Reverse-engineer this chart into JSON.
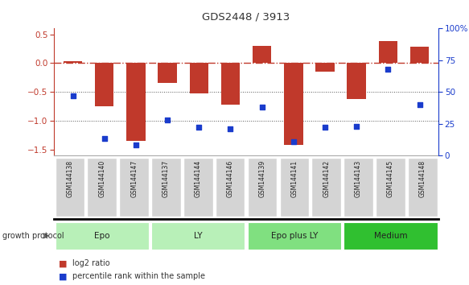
{
  "title": "GDS2448 / 3913",
  "samples": [
    "GSM144138",
    "GSM144140",
    "GSM144147",
    "GSM144137",
    "GSM144144",
    "GSM144146",
    "GSM144139",
    "GSM144141",
    "GSM144142",
    "GSM144143",
    "GSM144145",
    "GSM144148"
  ],
  "log2_ratio": [
    0.03,
    -0.75,
    -1.35,
    -0.35,
    -0.53,
    -0.72,
    0.3,
    -1.42,
    -0.15,
    -0.62,
    0.38,
    0.28
  ],
  "percentile_rank": [
    47,
    13,
    8,
    28,
    22,
    21,
    38,
    11,
    22,
    23,
    68,
    40
  ],
  "bar_color": "#c0392b",
  "dot_color": "#1a3ccc",
  "groups": [
    {
      "label": "Epo",
      "start": 0,
      "end": 3,
      "color": "#b8f0b8"
    },
    {
      "label": "LY",
      "start": 3,
      "end": 6,
      "color": "#b8f0b8"
    },
    {
      "label": "Epo plus LY",
      "start": 6,
      "end": 9,
      "color": "#80e080"
    },
    {
      "label": "Medium",
      "start": 9,
      "end": 12,
      "color": "#30c030"
    }
  ],
  "ylim": [
    -1.6,
    0.6
  ],
  "yticks_left": [
    -1.5,
    -1.0,
    -0.5,
    0.0,
    0.5
  ],
  "yticks_right": [
    0,
    25,
    50,
    75,
    100
  ],
  "hline_zero_color": "#c0392b",
  "hline_dotted_color": "#555555",
  "legend_log2_label": "log2 ratio",
  "legend_pct_label": "percentile rank within the sample",
  "group_protocol_label": "growth protocol"
}
